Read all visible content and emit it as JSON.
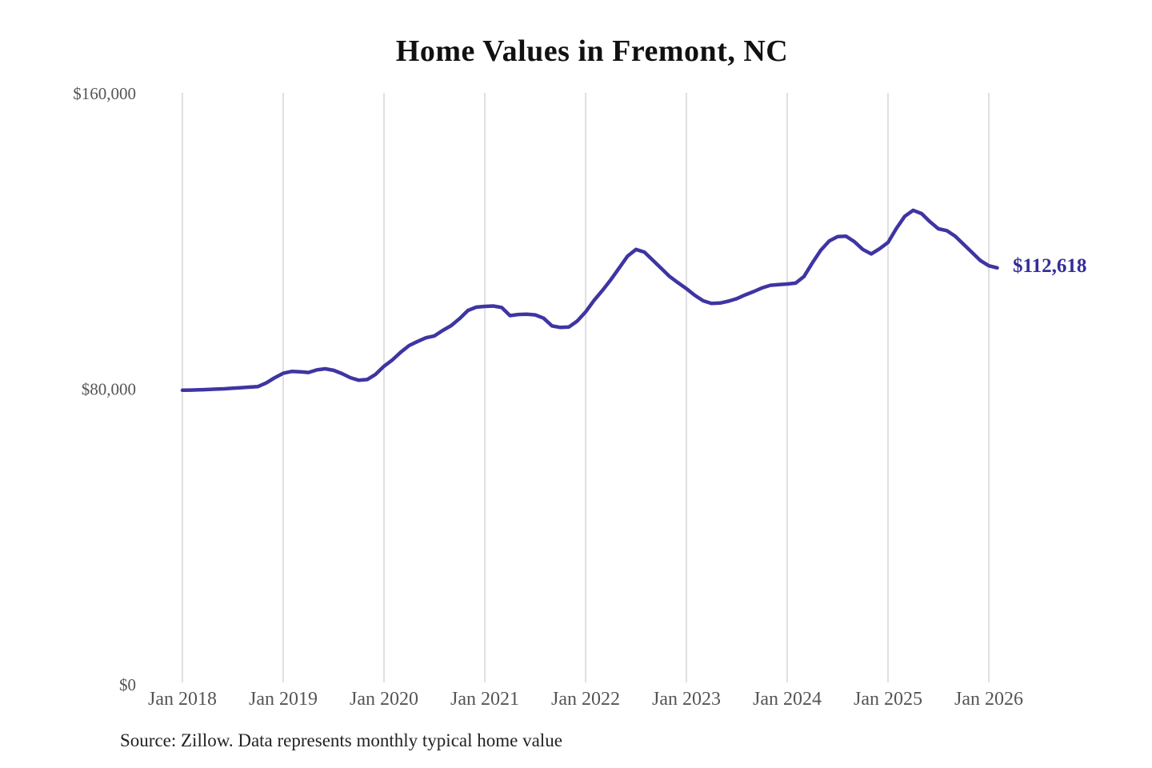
{
  "page": {
    "background_color": "#ffffff"
  },
  "chart_data": {
    "type": "line",
    "title": "Home Values in Fremont, NC",
    "xlabel": "",
    "ylabel": "",
    "unit": "USD",
    "legend": false,
    "grid": "vertical-only",
    "ylim": [
      0,
      160000
    ],
    "yticks": [
      {
        "value": 0,
        "label": "$0"
      },
      {
        "value": 80000,
        "label": "$80,000"
      },
      {
        "value": 160000,
        "label": "$160,000"
      }
    ],
    "xticks": [
      {
        "month_index": 0,
        "label": "Jan 2018"
      },
      {
        "month_index": 12,
        "label": "Jan 2019"
      },
      {
        "month_index": 24,
        "label": "Jan 2020"
      },
      {
        "month_index": 36,
        "label": "Jan 2021"
      },
      {
        "month_index": 48,
        "label": "Jan 2022"
      },
      {
        "month_index": 60,
        "label": "Jan 2023"
      },
      {
        "month_index": 72,
        "label": "Jan 2024"
      },
      {
        "month_index": 84,
        "label": "Jan 2025"
      },
      {
        "month_index": 96,
        "label": "Jan 2026"
      }
    ],
    "series": [
      {
        "name": "Monthly typical home value",
        "months": [
          "2018-01",
          "2018-02",
          "2018-03",
          "2018-04",
          "2018-05",
          "2018-06",
          "2018-07",
          "2018-08",
          "2018-09",
          "2018-10",
          "2018-11",
          "2018-12",
          "2019-01",
          "2019-02",
          "2019-03",
          "2019-04",
          "2019-05",
          "2019-06",
          "2019-07",
          "2019-08",
          "2019-09",
          "2019-10",
          "2019-11",
          "2019-12",
          "2020-01",
          "2020-02",
          "2020-03",
          "2020-04",
          "2020-05",
          "2020-06",
          "2020-07",
          "2020-08",
          "2020-09",
          "2020-10",
          "2020-11",
          "2020-12",
          "2021-01",
          "2021-02",
          "2021-03",
          "2021-04",
          "2021-05",
          "2021-06",
          "2021-07",
          "2021-08",
          "2021-09",
          "2021-10",
          "2021-11",
          "2021-12",
          "2022-01",
          "2022-02",
          "2022-03",
          "2022-04",
          "2022-05",
          "2022-06",
          "2022-07",
          "2022-08",
          "2022-09",
          "2022-10",
          "2022-11",
          "2022-12",
          "2023-01",
          "2023-02",
          "2023-03",
          "2023-04",
          "2023-05",
          "2023-06",
          "2023-07",
          "2023-08",
          "2023-09",
          "2023-10",
          "2023-11",
          "2023-12",
          "2024-01",
          "2024-02",
          "2024-03",
          "2024-04",
          "2024-05",
          "2024-06",
          "2024-07",
          "2024-08",
          "2024-09",
          "2024-10",
          "2024-11",
          "2024-12",
          "2025-01",
          "2025-02",
          "2025-03",
          "2025-04",
          "2025-05",
          "2025-06",
          "2025-07",
          "2025-08",
          "2025-09",
          "2025-10",
          "2025-11",
          "2025-12",
          "2026-01",
          "2026-02"
        ],
        "values": [
          79500,
          79550,
          79600,
          79700,
          79800,
          79900,
          80050,
          80200,
          80350,
          80500,
          81500,
          82900,
          84100,
          84600,
          84500,
          84300,
          85000,
          85300,
          84900,
          84000,
          82900,
          82200,
          82400,
          83800,
          86000,
          87700,
          89800,
          91600,
          92700,
          93700,
          94200,
          95700,
          97000,
          98900,
          101100,
          102000,
          102200,
          102300,
          101900,
          99700,
          100000,
          100100,
          99900,
          99000,
          96900,
          96500,
          96600,
          98200,
          100700,
          103800,
          106500,
          109400,
          112600,
          115800,
          117600,
          116900,
          114700,
          112500,
          110300,
          108600,
          107000,
          105200,
          103700,
          103000,
          103100,
          103600,
          104300,
          105300,
          106200,
          107200,
          107900,
          108100,
          108250,
          108500,
          110300,
          114000,
          117400,
          119900,
          121100,
          121200,
          119700,
          117600,
          116400,
          117800,
          119500,
          123300,
          126600,
          128200,
          127300,
          125100,
          123200,
          122700,
          121200,
          119000,
          116800,
          114600,
          113200,
          112618
        ]
      }
    ],
    "end_label": "$112,618",
    "last_value": 112618,
    "colors": {
      "line": "#3e35a2",
      "end_label": "#342c9b",
      "gridline": "#cccccc",
      "tick_label": "#555555",
      "title": "#111111",
      "source": "#222222"
    }
  },
  "footer": {
    "source_note": "Source: Zillow. Data represents monthly typical home value"
  }
}
